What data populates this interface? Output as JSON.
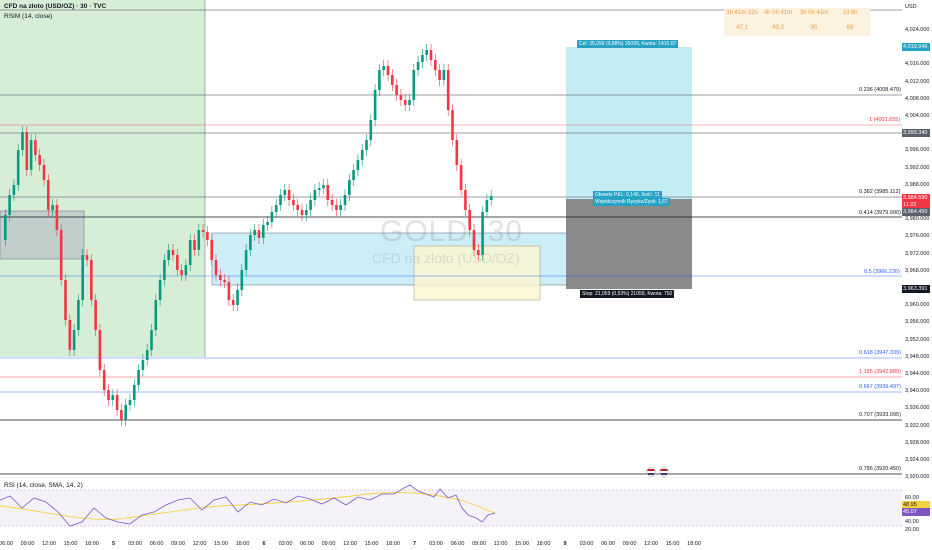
{
  "header": {
    "symbol_title": "CFD na złoto (USD/OZ) · 30 · TVC",
    "indicator_label": "RSIM (14, close)"
  },
  "currency": "USD",
  "stats_panel": {
    "columns": [
      {
        "time": "1h 41m 22s",
        "value": "47.1"
      },
      {
        "time": "4h 0h 41m",
        "value": "49.3"
      },
      {
        "time": "3h 0h 41m",
        "value": "90"
      },
      {
        "time": "1d 8h",
        "value": "68"
      }
    ],
    "color": "#f0a04b"
  },
  "watermark": {
    "symbol": "GOLD, 30",
    "description": "CFD na złoto (USD/OZ)"
  },
  "price_axis": [
    "4,024.000",
    "4,020.000",
    "4,016.000",
    "4,012.000",
    "4,008.000",
    "4,004.000",
    "4,000.000",
    "3,996.000",
    "3,992.000",
    "3,988.000",
    "3,984.000",
    "3,980.000",
    "3,976.000",
    "3,972.000",
    "3,968.000",
    "3,964.000",
    "3,960.000",
    "3,956.000",
    "3,952.000",
    "3,948.000",
    "3,944.000",
    "3,940.000",
    "3,936.000",
    "3,932.000",
    "3,928.000",
    "3,924.000",
    "3,920.000"
  ],
  "price_tags": [
    {
      "label": "4,019.946",
      "color": "#26a3c4"
    },
    {
      "label": "3,999.340",
      "color": "#5d606b"
    },
    {
      "label": "3,984.590",
      "color": "#f23645"
    },
    {
      "label": "11:22",
      "color": "#f23645"
    },
    {
      "label": "3,984.450",
      "color": "#5d606b"
    },
    {
      "label": "3,963.391",
      "color": "#131722"
    }
  ],
  "fib_levels": [
    {
      "label": "0.236 (4008.479)",
      "color": "#131722"
    },
    {
      "label": "1 (4001.655)",
      "color": "#f23645"
    },
    {
      "label": "0.382 (3985.112)",
      "color": "#131722"
    },
    {
      "label": "0.414 (3979.990)",
      "color": "#131722"
    },
    {
      "label": "0.5 (3966.226)",
      "color": "#2962ff"
    },
    {
      "label": "0.618 (3947.339)",
      "color": "#2962ff"
    },
    {
      "label": "1.195 (3942.889)",
      "color": "#f23645"
    },
    {
      "label": "0.667 (3939.497)",
      "color": "#2962ff"
    },
    {
      "label": "0.707 (3933.095)",
      "color": "#131722"
    },
    {
      "label": "0.786 (3920.450)",
      "color": "#131722"
    }
  ],
  "position": {
    "target_label": "Cel: 35,099 (0,88%) 35099, Kwota: 1416,67",
    "open_label_1": "Otwarte P&L: 0,140, Ilość: 11",
    "open_label_2": "Współczynnik Ryzyko/Zysk: 1,67",
    "stop_label": "Stop: 21,059 (0,53%) 21059, Kwota: 750"
  },
  "rsi_panel": {
    "label": "RSI (14, close, SMA, 14, 2)",
    "axis": [
      "60.00",
      "40.00",
      "20.00"
    ],
    "tags": [
      {
        "label": "48.95",
        "color": "#f5d142"
      },
      {
        "label": "45.07",
        "color": "#7e57c2"
      }
    ]
  },
  "time_axis": [
    "06:00",
    "09:00",
    "12:00",
    "15:00",
    "18:00",
    "5",
    "03:00",
    "06:00",
    "09:00",
    "12:00",
    "15:00",
    "18:00",
    "6",
    "03:00",
    "06:00",
    "09:00",
    "12:00",
    "15:00",
    "18:00",
    "7",
    "03:00",
    "06:00",
    "09:00",
    "12:00",
    "15:00",
    "18:00",
    "9",
    "03:00",
    "06:00",
    "09:00",
    "12:00",
    "15:00",
    "18:00"
  ],
  "colors": {
    "up": "#089981",
    "down": "#f23645",
    "zone_green": "#d7eed6",
    "zone_blue": "#c9ecf6",
    "zone_yellow": "#fdf5cf",
    "target_fill": "#c3ecf3",
    "stop_fill": "#8a8a8a"
  }
}
